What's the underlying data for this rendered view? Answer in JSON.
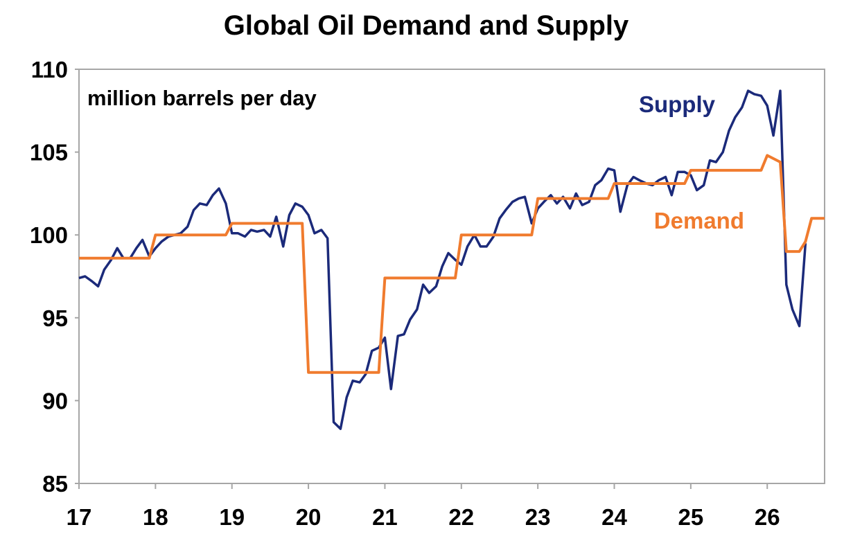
{
  "chart_data": {
    "type": "line",
    "title": "Global Oil Demand and Supply",
    "ylabel": "million barrels per day",
    "xlabel": "",
    "x_unit": "year",
    "xlim": [
      2017,
      2026.75
    ],
    "ylim": [
      85,
      110
    ],
    "xticks": [
      {
        "value": 2017,
        "label": "17"
      },
      {
        "value": 2018,
        "label": "18"
      },
      {
        "value": 2019,
        "label": "19"
      },
      {
        "value": 2020,
        "label": "20"
      },
      {
        "value": 2021,
        "label": "21"
      },
      {
        "value": 2022,
        "label": "22"
      },
      {
        "value": 2023,
        "label": "23"
      },
      {
        "value": 2024,
        "label": "24"
      },
      {
        "value": 2025,
        "label": "25"
      },
      {
        "value": 2026,
        "label": "26"
      }
    ],
    "yticks": [
      {
        "value": 110,
        "label": "110"
      },
      {
        "value": 105,
        "label": "105"
      },
      {
        "value": 100,
        "label": "100"
      },
      {
        "value": 95,
        "label": "95"
      },
      {
        "value": 90,
        "label": "90"
      },
      {
        "value": 85,
        "label": "85"
      }
    ],
    "grid": false,
    "legend": "inline labels",
    "series": [
      {
        "name": "Supply",
        "color": "#1b2a7a",
        "label_position": "upper-right",
        "points": [
          [
            2017.0,
            97.4
          ],
          [
            2017.08,
            97.5
          ],
          [
            2017.17,
            97.2
          ],
          [
            2017.25,
            96.9
          ],
          [
            2017.33,
            97.9
          ],
          [
            2017.42,
            98.5
          ],
          [
            2017.5,
            99.2
          ],
          [
            2017.58,
            98.6
          ],
          [
            2017.67,
            98.6
          ],
          [
            2017.75,
            99.2
          ],
          [
            2017.83,
            99.7
          ],
          [
            2017.92,
            98.7
          ],
          [
            2018.0,
            99.2
          ],
          [
            2018.08,
            99.6
          ],
          [
            2018.17,
            99.9
          ],
          [
            2018.25,
            100.0
          ],
          [
            2018.33,
            100.1
          ],
          [
            2018.42,
            100.5
          ],
          [
            2018.5,
            101.5
          ],
          [
            2018.58,
            101.9
          ],
          [
            2018.67,
            101.8
          ],
          [
            2018.75,
            102.4
          ],
          [
            2018.83,
            102.8
          ],
          [
            2018.92,
            101.9
          ],
          [
            2019.0,
            100.1
          ],
          [
            2019.08,
            100.1
          ],
          [
            2019.17,
            99.9
          ],
          [
            2019.25,
            100.3
          ],
          [
            2019.33,
            100.2
          ],
          [
            2019.42,
            100.3
          ],
          [
            2019.5,
            99.9
          ],
          [
            2019.58,
            101.1
          ],
          [
            2019.67,
            99.3
          ],
          [
            2019.75,
            101.2
          ],
          [
            2019.83,
            101.9
          ],
          [
            2019.92,
            101.7
          ],
          [
            2020.0,
            101.2
          ],
          [
            2020.08,
            100.1
          ],
          [
            2020.17,
            100.3
          ],
          [
            2020.25,
            99.8
          ],
          [
            2020.33,
            88.7
          ],
          [
            2020.42,
            88.3
          ],
          [
            2020.5,
            90.2
          ],
          [
            2020.58,
            91.2
          ],
          [
            2020.67,
            91.1
          ],
          [
            2020.75,
            91.6
          ],
          [
            2020.83,
            93.0
          ],
          [
            2020.92,
            93.2
          ],
          [
            2021.0,
            93.8
          ],
          [
            2021.08,
            90.7
          ],
          [
            2021.17,
            93.9
          ],
          [
            2021.25,
            94.0
          ],
          [
            2021.33,
            94.9
          ],
          [
            2021.42,
            95.5
          ],
          [
            2021.5,
            97.0
          ],
          [
            2021.58,
            96.5
          ],
          [
            2021.67,
            96.9
          ],
          [
            2021.75,
            98.1
          ],
          [
            2021.83,
            98.9
          ],
          [
            2021.92,
            98.5
          ],
          [
            2022.0,
            98.2
          ],
          [
            2022.08,
            99.3
          ],
          [
            2022.17,
            100.0
          ],
          [
            2022.25,
            99.3
          ],
          [
            2022.33,
            99.3
          ],
          [
            2022.42,
            99.9
          ],
          [
            2022.5,
            101.0
          ],
          [
            2022.58,
            101.5
          ],
          [
            2022.67,
            102.0
          ],
          [
            2022.75,
            102.2
          ],
          [
            2022.83,
            102.3
          ],
          [
            2022.92,
            100.7
          ],
          [
            2023.0,
            101.6
          ],
          [
            2023.08,
            102.0
          ],
          [
            2023.17,
            102.4
          ],
          [
            2023.25,
            101.9
          ],
          [
            2023.33,
            102.3
          ],
          [
            2023.42,
            101.6
          ],
          [
            2023.5,
            102.5
          ],
          [
            2023.58,
            101.8
          ],
          [
            2023.67,
            102.0
          ],
          [
            2023.75,
            103.0
          ],
          [
            2023.83,
            103.3
          ],
          [
            2023.92,
            104.0
          ],
          [
            2024.0,
            103.9
          ],
          [
            2024.08,
            101.4
          ],
          [
            2024.17,
            103.0
          ],
          [
            2024.25,
            103.5
          ],
          [
            2024.33,
            103.3
          ],
          [
            2024.42,
            103.1
          ],
          [
            2024.5,
            103.0
          ],
          [
            2024.58,
            103.3
          ],
          [
            2024.67,
            103.5
          ],
          [
            2024.75,
            102.4
          ],
          [
            2024.83,
            103.8
          ],
          [
            2024.92,
            103.8
          ],
          [
            2025.0,
            103.6
          ],
          [
            2025.08,
            102.7
          ],
          [
            2025.17,
            103.0
          ],
          [
            2025.25,
            104.5
          ],
          [
            2025.33,
            104.4
          ],
          [
            2025.42,
            105.0
          ],
          [
            2025.5,
            106.3
          ],
          [
            2025.58,
            107.1
          ],
          [
            2025.67,
            107.7
          ],
          [
            2025.75,
            108.7
          ],
          [
            2025.83,
            108.5
          ],
          [
            2025.92,
            108.4
          ],
          [
            2026.0,
            107.8
          ],
          [
            2026.08,
            106.0
          ],
          [
            2026.17,
            108.7
          ],
          [
            2026.25,
            97.0
          ],
          [
            2026.33,
            95.5
          ],
          [
            2026.42,
            94.5
          ],
          [
            2026.5,
            99.5
          ]
        ]
      },
      {
        "name": "Demand",
        "color": "#f07b2e",
        "label_position": "center-right",
        "points": [
          [
            2017.0,
            98.6
          ],
          [
            2017.92,
            98.6
          ],
          [
            2018.0,
            100.0
          ],
          [
            2018.92,
            100.0
          ],
          [
            2019.0,
            100.7
          ],
          [
            2019.92,
            100.7
          ],
          [
            2020.0,
            91.7
          ],
          [
            2020.92,
            91.7
          ],
          [
            2021.0,
            97.4
          ],
          [
            2021.92,
            97.4
          ],
          [
            2022.0,
            100.0
          ],
          [
            2022.92,
            100.0
          ],
          [
            2023.0,
            102.2
          ],
          [
            2023.92,
            102.2
          ],
          [
            2024.0,
            103.1
          ],
          [
            2024.92,
            103.1
          ],
          [
            2025.0,
            103.9
          ],
          [
            2025.92,
            103.9
          ],
          [
            2026.0,
            104.8
          ],
          [
            2026.17,
            104.4
          ],
          [
            2026.25,
            99.0
          ],
          [
            2026.42,
            99.0
          ],
          [
            2026.5,
            99.6
          ],
          [
            2026.58,
            101.0
          ],
          [
            2026.75,
            101.0
          ]
        ]
      }
    ]
  }
}
